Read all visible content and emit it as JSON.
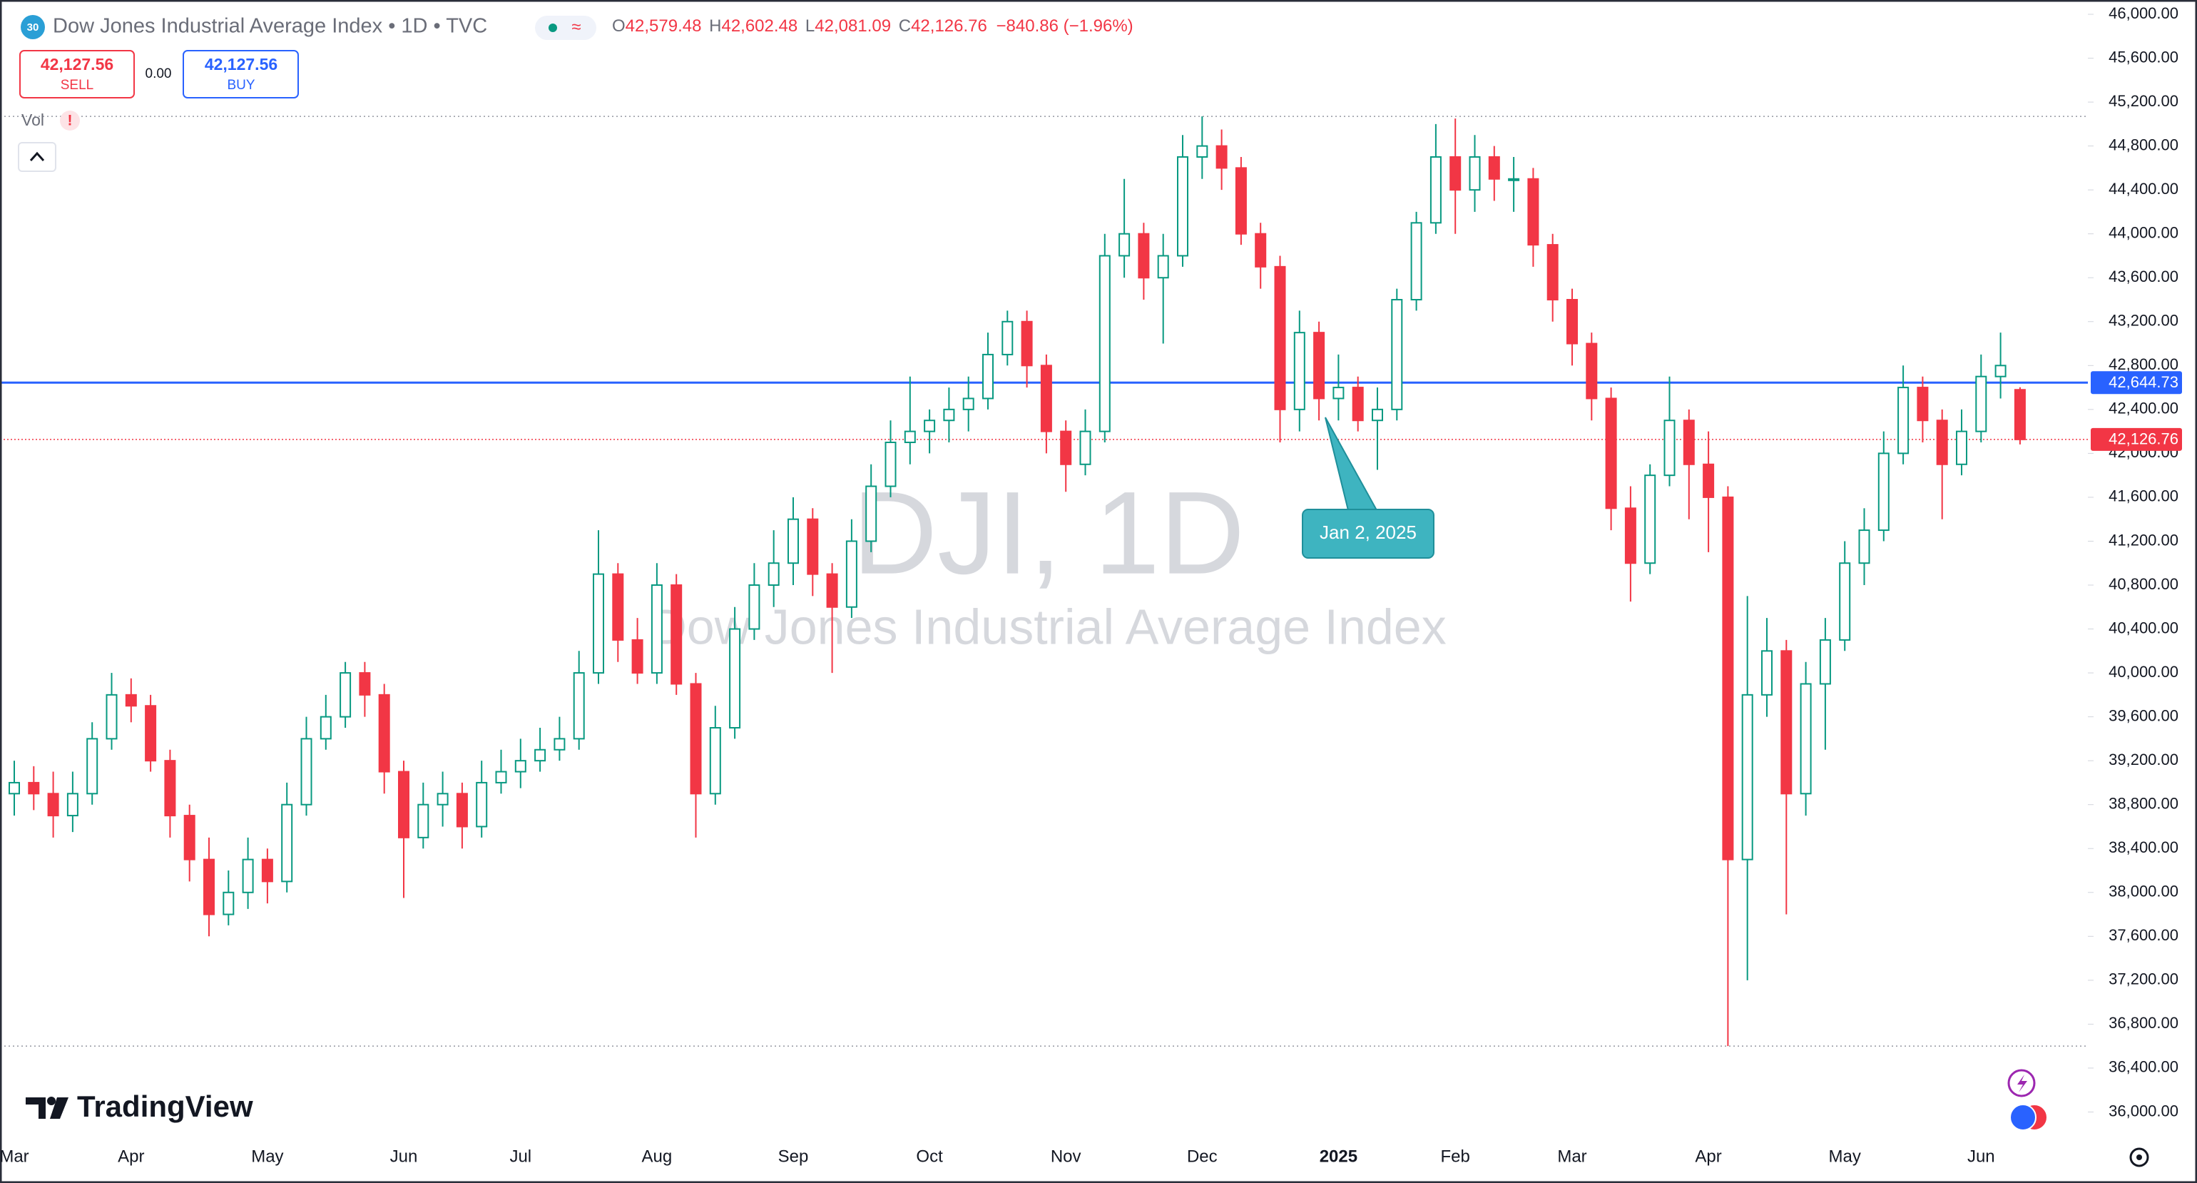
{
  "header": {
    "badge": "30",
    "title": "Dow Jones Industrial Average Index • 1D • TVC",
    "pill": "≈",
    "ohlc_legend": [
      [
        "O",
        "42,579.48"
      ],
      [
        "H",
        "42,602.48"
      ],
      [
        "L",
        "42,081.09"
      ],
      [
        "C",
        "42,126.76"
      ]
    ],
    "change": "−840.86 (−1.96%)",
    "sell": {
      "price": "42,127.56",
      "label": "SELL"
    },
    "spread": "0.00",
    "buy": {
      "price": "42,127.56",
      "label": "BUY"
    },
    "volume_label": "Vol",
    "volume_warning": "!"
  },
  "chart_data": {
    "type": "candlestick",
    "watermark": {
      "symbol": "DJI, 1D",
      "name": "Dow Jones Industrial Average Index"
    },
    "categories": [
      "Mar",
      null,
      null,
      null,
      null,
      null,
      "Apr",
      null,
      null,
      null,
      null,
      null,
      null,
      "May",
      null,
      null,
      null,
      null,
      null,
      null,
      "Jun",
      null,
      null,
      null,
      null,
      null,
      "Jul",
      null,
      null,
      null,
      null,
      null,
      null,
      "Aug",
      null,
      null,
      null,
      null,
      null,
      null,
      "Sep",
      null,
      null,
      null,
      null,
      null,
      null,
      "Oct",
      null,
      null,
      null,
      null,
      null,
      null,
      "Nov",
      null,
      null,
      null,
      null,
      null,
      null,
      "Dec",
      null,
      null,
      null,
      null,
      null,
      null,
      "2025",
      null,
      null,
      null,
      null,
      null,
      "Feb",
      null,
      null,
      null,
      null,
      null,
      "Mar",
      null,
      null,
      null,
      null,
      null,
      null,
      "Apr",
      null,
      null,
      null,
      null,
      null,
      null,
      "May",
      null,
      null,
      null,
      null,
      null,
      null,
      "Jun",
      null,
      null
    ],
    "open": [
      38900,
      39000,
      38900,
      38700,
      38900,
      39400,
      39800,
      39700,
      39200,
      38700,
      38300,
      37800,
      38000,
      38300,
      38100,
      38800,
      39400,
      39600,
      40000,
      39800,
      39100,
      38500,
      38800,
      38900,
      38600,
      39000,
      39100,
      39200,
      39300,
      39400,
      40000,
      40900,
      40300,
      40000,
      40800,
      39900,
      38900,
      39500,
      40400,
      40800,
      41000,
      41400,
      40900,
      40600,
      41200,
      41700,
      42100,
      42200,
      42300,
      42400,
      42500,
      42900,
      43200,
      42800,
      42200,
      41900,
      42200,
      43800,
      44000,
      43600,
      43800,
      44700,
      44800,
      44600,
      44000,
      43700,
      42400,
      43100,
      42500,
      42600,
      42300,
      42400,
      43400,
      44100,
      44700,
      44400,
      44700,
      44500,
      44500,
      43900,
      43400,
      43000,
      42500,
      41500,
      41000,
      41800,
      42300,
      41900,
      41600,
      38300,
      39800,
      40200,
      38900,
      39900,
      40300,
      41000,
      41300,
      42000,
      42600,
      42300,
      41900,
      42200,
      42700,
      42579.48
    ],
    "high": [
      39200,
      39150,
      39100,
      39100,
      39550,
      40000,
      39950,
      39800,
      39300,
      38800,
      38500,
      38200,
      38500,
      38400,
      39000,
      39600,
      39800,
      40100,
      40100,
      39900,
      39200,
      39000,
      39100,
      39000,
      39200,
      39300,
      39400,
      39500,
      39600,
      40200,
      41300,
      41000,
      40500,
      41000,
      40900,
      40000,
      39700,
      40600,
      41000,
      41300,
      41600,
      41500,
      41000,
      41400,
      41900,
      42300,
      42700,
      42400,
      42600,
      42700,
      43100,
      43300,
      43300,
      42900,
      42300,
      42400,
      44000,
      44500,
      44100,
      44000,
      44900,
      45070,
      44950,
      44700,
      44100,
      43800,
      43300,
      43200,
      42900,
      42700,
      42600,
      43500,
      44200,
      45000,
      45050,
      44900,
      44800,
      44700,
      44600,
      44000,
      43500,
      43100,
      42600,
      41700,
      41900,
      42700,
      42400,
      42200,
      41700,
      40700,
      40500,
      40300,
      40100,
      40500,
      41200,
      41500,
      42200,
      42800,
      42700,
      42400,
      42400,
      42900,
      43100,
      42602.48
    ],
    "low": [
      38700,
      38750,
      38500,
      38550,
      38800,
      39300,
      39550,
      39100,
      38500,
      38100,
      37600,
      37700,
      37850,
      37900,
      38000,
      38700,
      39300,
      39500,
      39600,
      38900,
      37950,
      38400,
      38600,
      38400,
      38500,
      38900,
      38950,
      39100,
      39200,
      39300,
      39900,
      40100,
      39900,
      39900,
      39800,
      38500,
      38800,
      39400,
      40300,
      40600,
      40800,
      40700,
      40000,
      40500,
      41100,
      41600,
      41900,
      42000,
      42100,
      42200,
      42400,
      42800,
      42600,
      42000,
      41650,
      41800,
      42100,
      43600,
      43400,
      43000,
      43700,
      44500,
      44400,
      43900,
      43500,
      42100,
      42200,
      42300,
      42300,
      42200,
      41850,
      42300,
      43300,
      44000,
      44000,
      44200,
      44300,
      44200,
      43700,
      43200,
      42800,
      42300,
      41300,
      40650,
      40900,
      41700,
      41400,
      41100,
      36600,
      37200,
      39600,
      37800,
      38700,
      39300,
      40200,
      40800,
      41200,
      41900,
      42100,
      41400,
      41800,
      42100,
      42500,
      42081.09
    ],
    "close": [
      39000,
      38900,
      38700,
      38900,
      39400,
      39800,
      39700,
      39200,
      38700,
      38300,
      37800,
      38000,
      38300,
      38100,
      38800,
      39400,
      39600,
      40000,
      39800,
      39100,
      38500,
      38800,
      38900,
      38600,
      39000,
      39100,
      39200,
      39300,
      39400,
      40000,
      40900,
      40300,
      40000,
      40800,
      39900,
      38900,
      39500,
      40400,
      40800,
      41000,
      41400,
      40900,
      40600,
      41200,
      41700,
      42100,
      42200,
      42300,
      42400,
      42500,
      42900,
      43200,
      42800,
      42200,
      41900,
      42200,
      43800,
      44000,
      43600,
      43800,
      44700,
      44800,
      44600,
      44000,
      43700,
      42400,
      43100,
      42500,
      42600,
      42300,
      42400,
      43400,
      44100,
      44700,
      44400,
      44700,
      44500,
      44500,
      43900,
      43400,
      43000,
      42500,
      41500,
      41000,
      41800,
      42300,
      41900,
      41600,
      38300,
      39800,
      40200,
      38900,
      39900,
      40300,
      41000,
      41300,
      42000,
      42600,
      42300,
      41900,
      42200,
      42700,
      42800,
      42126.76
    ],
    "up_color": "#089981",
    "down_color": "#f23645",
    "ylim": [
      35730,
      46130
    ],
    "yticks": [
      {
        "value": 36000,
        "label": "36,000.00"
      },
      {
        "value": 36400,
        "label": "36,400.00"
      },
      {
        "value": 36800,
        "label": "36,800.00"
      },
      {
        "value": 37200,
        "label": "37,200.00"
      },
      {
        "value": 37600,
        "label": "37,600.00"
      },
      {
        "value": 38000,
        "label": "38,000.00"
      },
      {
        "value": 38400,
        "label": "38,400.00"
      },
      {
        "value": 38800,
        "label": "38,800.00"
      },
      {
        "value": 39200,
        "label": "39,200.00"
      },
      {
        "value": 39600,
        "label": "39,600.00"
      },
      {
        "value": 40000,
        "label": "40,000.00"
      },
      {
        "value": 40400,
        "label": "40,400.00"
      },
      {
        "value": 40800,
        "label": "40,800.00"
      },
      {
        "value": 41200,
        "label": "41,200.00"
      },
      {
        "value": 41600,
        "label": "41,600.00"
      },
      {
        "value": 42000,
        "label": "42,000.00"
      },
      {
        "value": 42400,
        "label": "42,400.00"
      },
      {
        "value": 42800,
        "label": "42,800.00"
      },
      {
        "value": 43200,
        "label": "43,200.00"
      },
      {
        "value": 43600,
        "label": "43,600.00"
      },
      {
        "value": 44000,
        "label": "44,000.00"
      },
      {
        "value": 44400,
        "label": "44,400.00"
      },
      {
        "value": 44800,
        "label": "44,800.00"
      },
      {
        "value": 45200,
        "label": "45,200.00"
      },
      {
        "value": 45600,
        "label": "45,600.00"
      },
      {
        "value": 46000,
        "label": "46,000.00"
      }
    ],
    "grid": false,
    "horizontal_line": {
      "value": 42644.73,
      "label": "42,644.73",
      "color": "#2962ff"
    },
    "last_price": {
      "value": 42126.76,
      "label": "42,126.76",
      "color": "#f23645"
    },
    "annotation": "Jan 2, 2025"
  },
  "branding": "TradingView"
}
